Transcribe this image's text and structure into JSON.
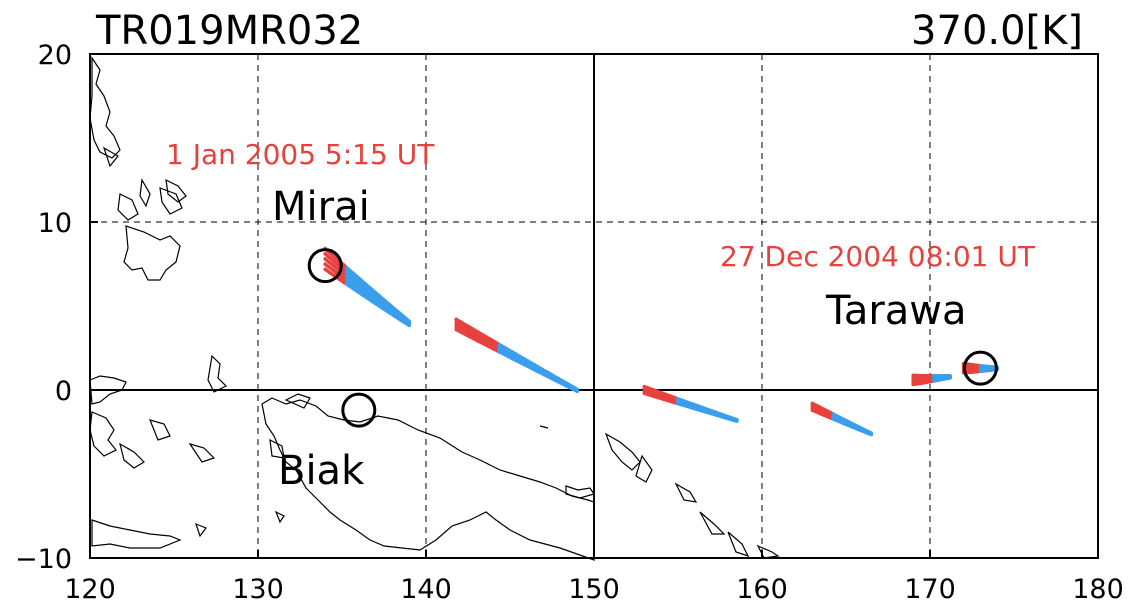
{
  "header": {
    "left_title": "TR019MR032",
    "right_title": "370.0[K]"
  },
  "colors": {
    "trajectory": "#3a9eec",
    "highlight": "#e8403c",
    "annotation": "#e8403c",
    "coast": "#000000",
    "circle": "#000000"
  },
  "chart_data": {
    "type": "scatter",
    "xlim": [
      120,
      180
    ],
    "ylim": [
      -10,
      20
    ],
    "x_ticks": [
      120,
      130,
      140,
      150,
      160,
      170,
      180
    ],
    "y_ticks": [
      -10,
      0,
      10,
      20
    ],
    "x_tick_labels": [
      "120",
      "130",
      "140",
      "150",
      "160",
      "170",
      "180"
    ],
    "y_tick_labels": [
      "−10",
      "0",
      "10",
      "20"
    ],
    "dashed_grid_x": [
      130,
      140,
      160,
      170
    ],
    "dashed_grid_y": [
      10
    ],
    "solid_lines_x": [
      150
    ],
    "solid_lines_y": [
      0
    ],
    "stations": [
      {
        "name": "Mirai",
        "lon": 134.0,
        "lat": 7.4
      },
      {
        "name": "Biak",
        "lon": 136.0,
        "lat": -1.2
      },
      {
        "name": "Tarawa",
        "lon": 173.0,
        "lat": 1.3
      }
    ],
    "annotations": [
      {
        "text": "1 Jan 2005 5:15 UT",
        "lon": 124.5,
        "lat": 13.7
      },
      {
        "text": "27 Dec 2004 08:01 UT",
        "lon": 157.5,
        "lat": 7.3
      }
    ],
    "trajectory_groups": [
      {
        "start": [
          134.0,
          7.8
        ],
        "end": [
          139.0,
          4.0
        ],
        "spread": 1.4,
        "hl_frac": 0.25
      },
      {
        "start": [
          141.8,
          3.9
        ],
        "end": [
          149.0,
          0.0
        ],
        "spread": 0.7,
        "hl_frac": 0.35
      },
      {
        "start": [
          153.0,
          0.0
        ],
        "end": [
          158.5,
          -1.8
        ],
        "spread": 0.45,
        "hl_frac": 0.35
      },
      {
        "start": [
          163.0,
          -1.0
        ],
        "end": [
          166.5,
          -2.6
        ],
        "spread": 0.45,
        "hl_frac": 0.35
      },
      {
        "start": [
          169.0,
          0.6
        ],
        "end": [
          171.2,
          0.8
        ],
        "spread": 0.6,
        "hl_frac": 0.55
      },
      {
        "start": [
          172.0,
          1.3
        ],
        "end": [
          174.0,
          1.3
        ],
        "spread": 0.6,
        "hl_frac": 0.5
      }
    ]
  }
}
